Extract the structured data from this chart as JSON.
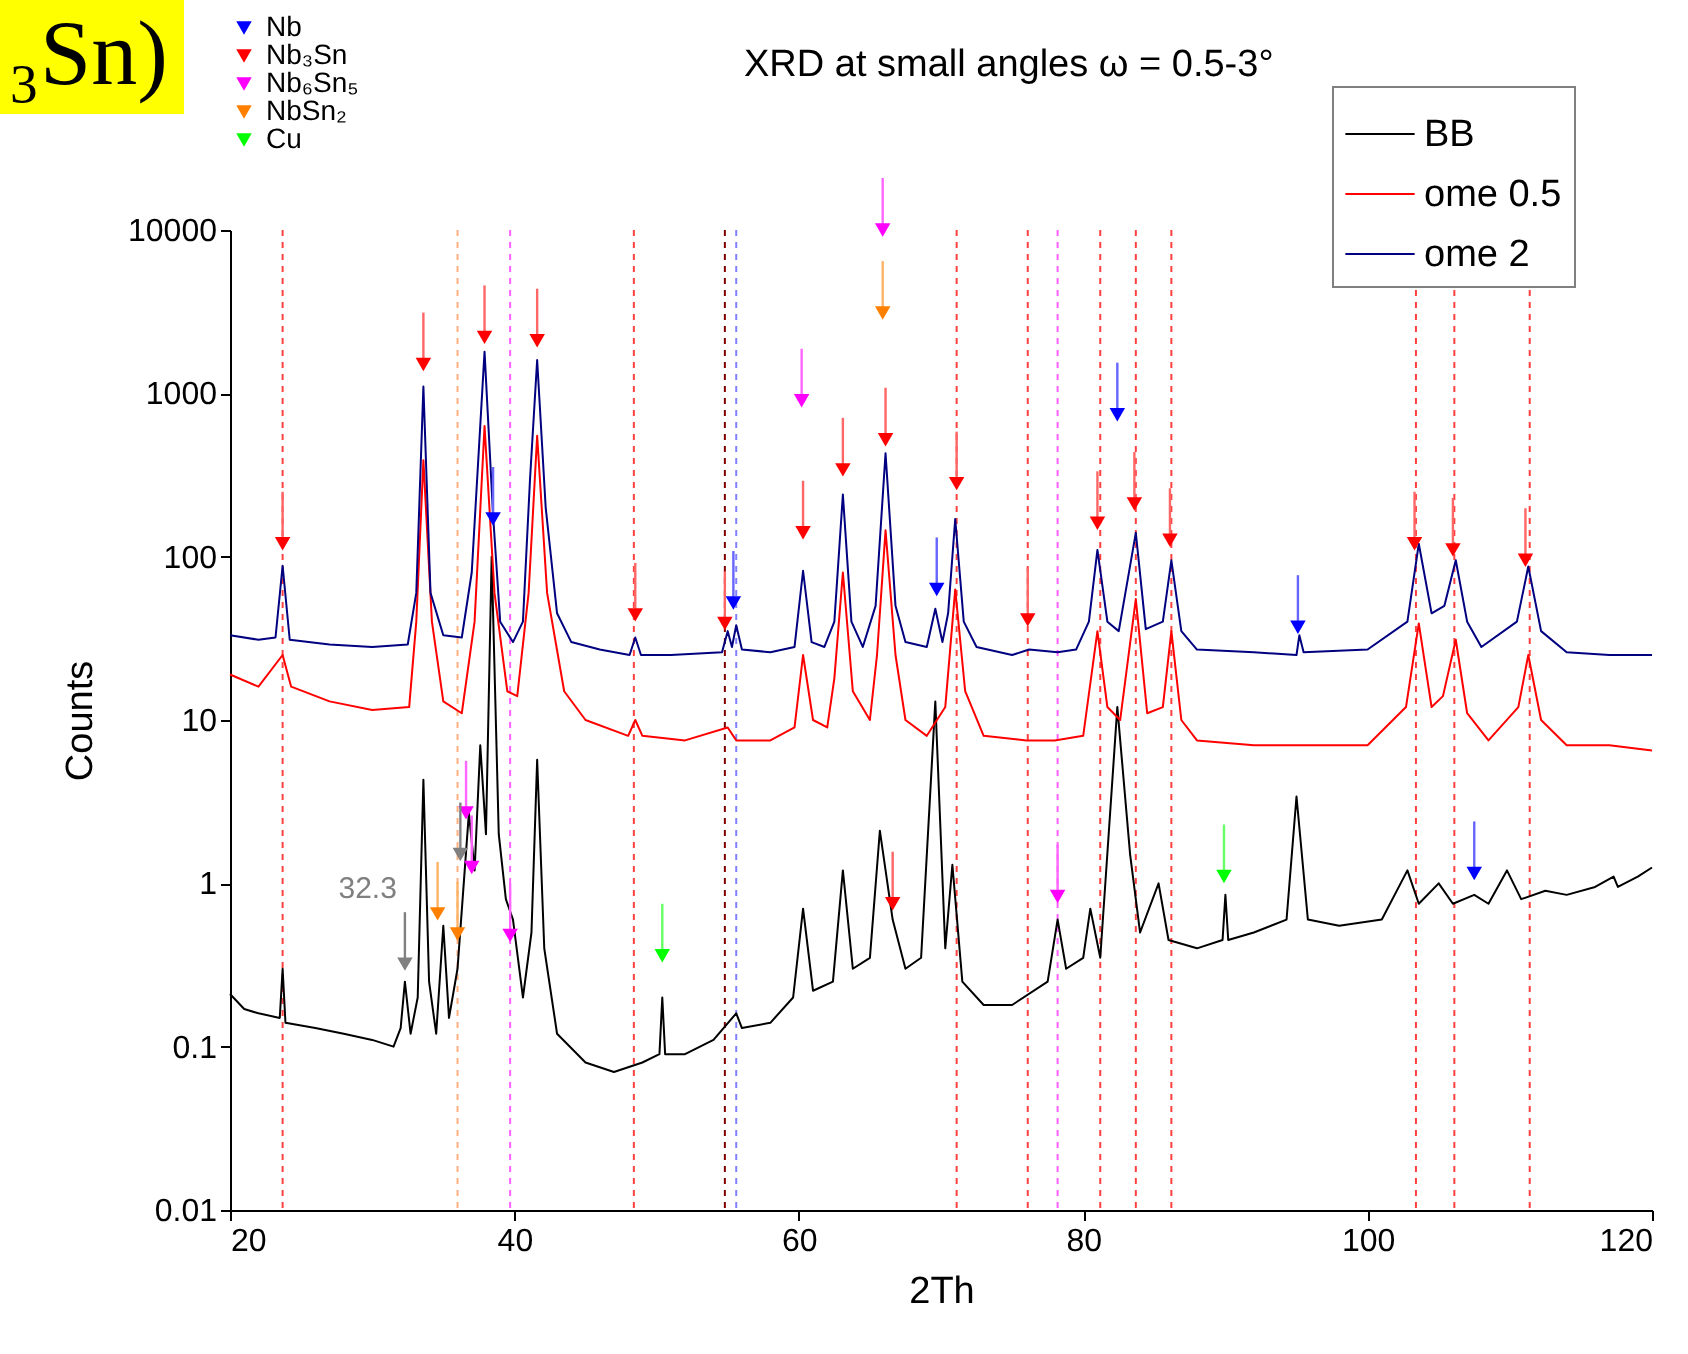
{
  "chart_data": {
    "type": "line",
    "title": "XRD at small angles ω = 0.5-3°",
    "xlabel": "2Th",
    "ylabel": "Counts",
    "xlim": [
      20,
      120
    ],
    "xticks": [
      20,
      40,
      60,
      80,
      100,
      120
    ],
    "ylim": [
      0.01,
      10000
    ],
    "yticks": [
      0.01,
      0.1,
      1,
      10,
      100,
      1000,
      10000
    ],
    "log": "y",
    "grid": false,
    "legend": "top right",
    "line_style": "solid",
    "annotations": [
      "₃Sn)",
      {
        "text": "32.3",
        "x": 32.3,
        "y": 0.32
      }
    ],
    "ref_lines": [
      {
        "axis": "x",
        "value": 23.7,
        "color": "#ff4040",
        "line_style": "dashed"
      },
      {
        "axis": "x",
        "value": 36.0,
        "color": "#ffb080",
        "line_style": "dashed"
      },
      {
        "axis": "x",
        "value": 39.7,
        "color": "#ff60ff",
        "line_style": "dashed"
      },
      {
        "axis": "x",
        "value": 48.4,
        "color": "#ff4040",
        "line_style": "dashed"
      },
      {
        "axis": "x",
        "value": 54.8,
        "color": "#800000",
        "line_style": "dashed"
      },
      {
        "axis": "x",
        "value": 55.6,
        "color": "#8080ff",
        "line_style": "dashed"
      },
      {
        "axis": "x",
        "value": 71.1,
        "color": "#ff4040",
        "line_style": "dashed"
      },
      {
        "axis": "x",
        "value": 76.1,
        "color": "#ff4040",
        "line_style": "dashed"
      },
      {
        "axis": "x",
        "value": 78.2,
        "color": "#ff60ff",
        "line_style": "dashed"
      },
      {
        "axis": "x",
        "value": 81.2,
        "color": "#ff4040",
        "line_style": "dashed"
      },
      {
        "axis": "x",
        "value": 83.7,
        "color": "#ff4040",
        "line_style": "dashed"
      },
      {
        "axis": "x",
        "value": 86.2,
        "color": "#ff4040",
        "line_style": "dashed"
      },
      {
        "axis": "x",
        "value": 103.4,
        "color": "#ff4040",
        "line_style": "dashed"
      },
      {
        "axis": "x",
        "value": 106.1,
        "color": "#ff4040",
        "line_style": "dashed"
      },
      {
        "axis": "x",
        "value": 111.4,
        "color": "#ff4040",
        "line_style": "dashed"
      }
    ],
    "series": [
      {
        "name": "BB",
        "color": "#000000",
        "x": [
          20,
          21,
          22,
          23.5,
          23.7,
          23.9,
          26,
          28,
          30,
          31.5,
          32.0,
          32.3,
          32.7,
          33.2,
          33.6,
          34.0,
          34.5,
          35.0,
          35.4,
          36.0,
          36.4,
          36.8,
          37.2,
          37.6,
          38.0,
          38.4,
          38.9,
          39.4,
          39.9,
          40.6,
          41.2,
          41.6,
          42.1,
          43,
          45,
          47,
          49,
          50.2,
          50.4,
          50.6,
          52,
          54,
          55.6,
          56,
          58,
          59.6,
          60.3,
          61,
          62.4,
          63.1,
          63.8,
          65,
          65.7,
          66.6,
          67.5,
          68.6,
          69.6,
          70.3,
          70.8,
          71.5,
          73,
          75,
          77.5,
          78.2,
          78.8,
          80,
          80.5,
          81.2,
          82.4,
          83.3,
          84,
          85.3,
          86,
          88,
          89.8,
          90.0,
          90.2,
          92,
          94.3,
          95.0,
          95.8,
          98,
          101,
          102.8,
          103.6,
          105,
          106,
          107.5,
          108.5,
          109.8,
          110.8,
          112.5,
          114,
          116,
          117.3,
          117.6,
          119,
          120
        ],
        "values": [
          0.21,
          0.17,
          0.16,
          0.15,
          0.3,
          0.14,
          0.13,
          0.12,
          0.11,
          0.1,
          0.13,
          0.25,
          0.12,
          0.2,
          4.3,
          0.25,
          0.12,
          0.55,
          0.15,
          0.3,
          0.9,
          2.7,
          1.2,
          7,
          2,
          100,
          2,
          0.8,
          0.6,
          0.2,
          0.5,
          5.7,
          0.4,
          0.12,
          0.08,
          0.07,
          0.08,
          0.09,
          0.2,
          0.09,
          0.09,
          0.11,
          0.16,
          0.13,
          0.14,
          0.2,
          0.7,
          0.22,
          0.25,
          1.2,
          0.3,
          0.35,
          2.1,
          0.6,
          0.3,
          0.35,
          13,
          0.4,
          1.3,
          0.25,
          0.18,
          0.18,
          0.25,
          0.6,
          0.3,
          0.35,
          0.7,
          0.35,
          12,
          1.5,
          0.5,
          1.0,
          0.45,
          0.4,
          0.45,
          0.85,
          0.45,
          0.5,
          0.6,
          3.4,
          0.6,
          0.55,
          0.6,
          1.2,
          0.75,
          1.0,
          0.75,
          0.85,
          0.75,
          1.2,
          0.8,
          0.9,
          0.85,
          0.95,
          1.1,
          0.95,
          1.1,
          1.25
        ]
      },
      {
        "name": "ome 0.5",
        "color": "#ff0000",
        "x": [
          20,
          22,
          23.7,
          24.3,
          27,
          30,
          32.6,
          33.1,
          33.6,
          34.2,
          35,
          36.3,
          37.2,
          37.9,
          38.6,
          39.5,
          40.2,
          41.0,
          41.6,
          42.3,
          43.5,
          45,
          48,
          48.5,
          49,
          52,
          55,
          55.6,
          58,
          59.7,
          60.3,
          61,
          62,
          62.5,
          63.1,
          63.8,
          65,
          65.5,
          66.1,
          66.8,
          67.5,
          69,
          70.3,
          71,
          71.7,
          73,
          76,
          78,
          80,
          81,
          81.7,
          82.6,
          83.7,
          84.5,
          85.6,
          86.2,
          86.9,
          88,
          92,
          95,
          100,
          102.7,
          103.6,
          104.5,
          105.3,
          106.2,
          107,
          108.5,
          110.6,
          111.3,
          112.2,
          114,
          117,
          120
        ],
        "values": [
          19,
          16,
          25,
          16,
          13,
          11.5,
          12,
          40,
          390,
          40,
          13,
          11,
          40,
          630,
          60,
          15,
          14,
          60,
          550,
          60,
          15,
          10,
          8,
          10,
          8,
          7.5,
          9,
          7.5,
          7.5,
          9,
          25,
          10,
          9,
          18,
          80,
          15,
          10,
          25,
          145,
          25,
          10,
          8,
          12,
          63,
          15,
          8,
          7.5,
          7.5,
          8,
          35,
          12,
          10,
          55,
          11,
          12,
          35,
          10,
          7.5,
          7,
          7,
          7,
          12,
          39,
          12,
          14,
          31,
          11,
          7.5,
          12,
          25,
          10,
          7,
          7,
          6.5
        ]
      },
      {
        "name": "ome 2",
        "color": "#000080",
        "x": [
          20,
          22,
          23.2,
          23.7,
          24.2,
          27,
          30,
          32.5,
          33.1,
          33.6,
          34.1,
          35,
          36.3,
          37.0,
          37.9,
          38.5,
          39,
          39.9,
          40.6,
          41.1,
          41.6,
          42.2,
          43,
          44,
          46,
          48.1,
          48.5,
          48.9,
          51,
          54.6,
          55,
          55.3,
          55.6,
          56,
          58,
          59.7,
          60.3,
          60.9,
          61.8,
          62.5,
          63.1,
          63.7,
          64.5,
          65.4,
          66.1,
          66.8,
          67.5,
          69,
          69.6,
          70.1,
          70.5,
          71.0,
          71.6,
          72.5,
          75,
          76.2,
          78.2,
          79.5,
          80.4,
          81.0,
          81.7,
          82.5,
          83.7,
          84.4,
          85.6,
          86.2,
          86.9,
          88,
          92,
          95,
          95.2,
          95.5,
          100,
          102.8,
          103.6,
          104.5,
          105.4,
          106.2,
          107.0,
          108,
          110.5,
          111.3,
          112.2,
          114,
          117,
          120
        ],
        "values": [
          33,
          31,
          32,
          88,
          31,
          29,
          28,
          29,
          60,
          1100,
          60,
          33,
          32,
          80,
          1800,
          180,
          40,
          30,
          40,
          300,
          1600,
          200,
          45,
          30,
          27,
          25,
          32,
          25,
          25,
          26,
          35,
          28,
          38,
          27,
          26,
          28,
          82,
          30,
          28,
          40,
          240,
          40,
          28,
          50,
          430,
          50,
          30,
          28,
          48,
          30,
          45,
          170,
          40,
          28,
          25,
          27,
          26,
          27,
          40,
          110,
          40,
          35,
          140,
          36,
          40,
          95,
          35,
          27,
          26,
          25,
          33,
          26,
          27,
          40,
          120,
          45,
          50,
          95,
          40,
          28,
          40,
          87,
          35,
          26,
          25,
          25
        ]
      },
      {
        "name": "Nb",
        "type": "scatter",
        "marker": "triangle",
        "color": "#0000ff",
        "x": [
          38.5,
          55.4,
          69.7,
          82.4,
          95.1,
          107.5
        ],
        "values": [
          170,
          52,
          63,
          740,
          37,
          1.15
        ]
      },
      {
        "name": "Nb₃Sn",
        "type": "scatter",
        "marker": "triangle",
        "color": "#ff0000",
        "x": [
          23.7,
          33.6,
          37.9,
          41.6,
          48.5,
          54.8,
          60.3,
          63.1,
          66.1,
          66.6,
          71.1,
          76.1,
          81.0,
          83.6,
          86.1,
          103.3,
          106.0,
          111.1
        ],
        "values": [
          120,
          1500,
          2200,
          2100,
          44,
          39,
          140,
          340,
          520,
          0.75,
          280,
          41,
          160,
          210,
          126,
          120,
          110,
          95
        ]
      },
      {
        "name": "Nb₆Sn₅",
        "type": "scatter",
        "marker": "triangle",
        "color": "#ff00ff",
        "x": [
          36.6,
          37.0,
          39.7,
          60.2,
          65.9,
          78.2
        ],
        "values": [
          2.7,
          1.25,
          0.48,
          900,
          10000,
          0.83
        ]
      },
      {
        "name": "NbSn₂",
        "type": "scatter",
        "marker": "triangle",
        "color": "#ff8000",
        "x": [
          34.6,
          36.0,
          65.9
        ],
        "values": [
          0.65,
          0.49,
          3100
        ]
      },
      {
        "name": "Cu",
        "type": "scatter",
        "marker": "triangle",
        "color": "#00ff00",
        "x": [
          50.4,
          89.9
        ],
        "values": [
          0.36,
          1.1
        ]
      },
      {
        "type": "scatter",
        "marker": "triangle",
        "color": "#808080",
        "x": [
          32.3,
          36.2
        ],
        "values": [
          0.32,
          1.5
        ]
      }
    ]
  }
}
